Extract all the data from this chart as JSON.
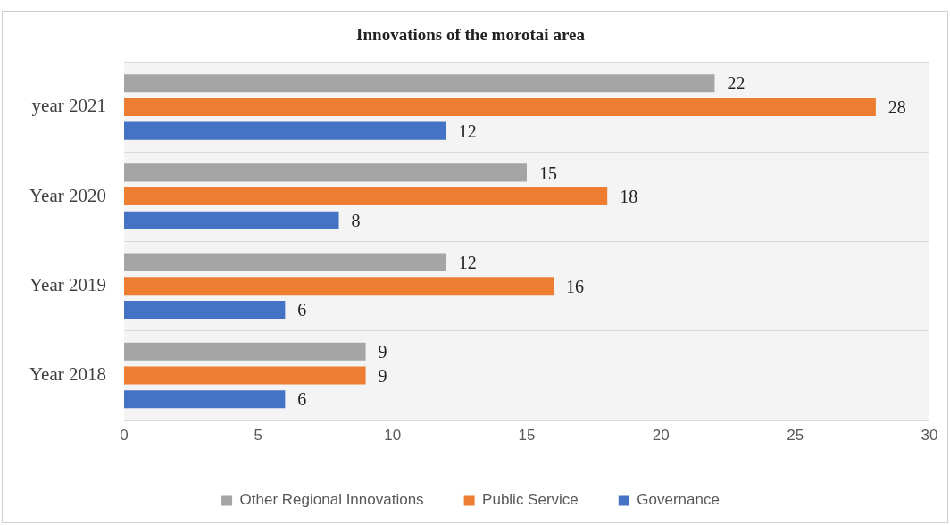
{
  "chart_data": {
    "type": "bar",
    "orientation": "horizontal",
    "title": "Innovations of the morotai area",
    "categories": [
      "year 2021",
      "Year 2020",
      "Year 2019",
      "Year 2018"
    ],
    "series": [
      {
        "name": "Other Regional Innovations",
        "color": "#a5a5a5",
        "values": [
          22,
          15,
          12,
          9
        ]
      },
      {
        "name": "Public Service",
        "color": "#ed7d31",
        "values": [
          28,
          18,
          16,
          9
        ]
      },
      {
        "name": "Governance",
        "color": "#4472c4",
        "values": [
          12,
          8,
          6,
          6
        ]
      }
    ],
    "xlim": [
      0,
      30
    ],
    "xticks": [
      0,
      5,
      10,
      15,
      20,
      25,
      30
    ],
    "grid": "y",
    "legend": "bottom",
    "data_labels": true
  }
}
